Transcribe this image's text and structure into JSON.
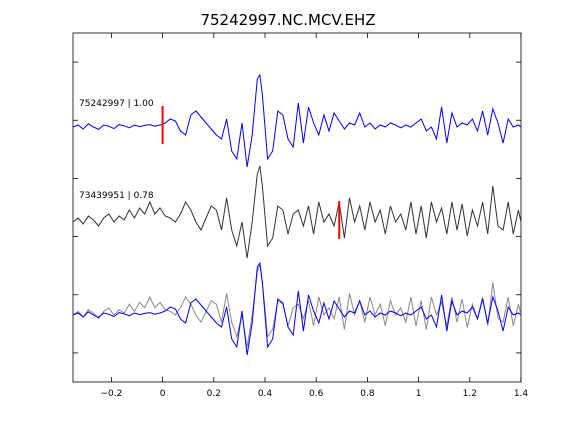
{
  "chart_data": {
    "type": "line",
    "title": "75242997.NC.MCV.EHZ",
    "xlabel": "",
    "ylabel": "",
    "xlim": [
      -0.35,
      1.4
    ],
    "grid": false,
    "x_ticks": [
      -0.2,
      0,
      0.2,
      0.4,
      0.6,
      0.8,
      1,
      1.2,
      1.4
    ],
    "x_tick_labels": [
      "−0.2",
      "0",
      "0.2",
      "0.4",
      "0.6",
      "0.8",
      "1",
      "1.2",
      "1.4"
    ],
    "y_tick_count": 6,
    "colors": {
      "reference": "#0000ff",
      "matched": "#333333",
      "overlay_matched": "#888888",
      "pick": "#ff0000"
    },
    "traces": [
      {
        "label": "75242997 | 1.00",
        "id": "75242997",
        "cc": 1.0,
        "color": "#0000ff",
        "pick_time": 0.0,
        "x": [
          -0.35,
          -0.33,
          -0.31,
          -0.29,
          -0.27,
          -0.25,
          -0.23,
          -0.21,
          -0.19,
          -0.17,
          -0.15,
          -0.13,
          -0.11,
          -0.09,
          -0.07,
          -0.05,
          -0.03,
          -0.01,
          0.01,
          0.03,
          0.05,
          0.07,
          0.09,
          0.11,
          0.13,
          0.15,
          0.17,
          0.19,
          0.21,
          0.23,
          0.25,
          0.27,
          0.29,
          0.31,
          0.33,
          0.35,
          0.37,
          0.38,
          0.39,
          0.41,
          0.43,
          0.45,
          0.47,
          0.49,
          0.51,
          0.53,
          0.55,
          0.57,
          0.59,
          0.61,
          0.63,
          0.65,
          0.67,
          0.69,
          0.71,
          0.73,
          0.75,
          0.77,
          0.79,
          0.81,
          0.83,
          0.85,
          0.87,
          0.89,
          0.91,
          0.93,
          0.95,
          0.97,
          0.99,
          1.01,
          1.03,
          1.05,
          1.07,
          1.09,
          1.11,
          1.13,
          1.15,
          1.17,
          1.19,
          1.21,
          1.23,
          1.25,
          1.27,
          1.29,
          1.31,
          1.33,
          1.35,
          1.37,
          1.39,
          1.4
        ],
        "y": [
          0.0,
          0.05,
          -0.05,
          0.08,
          0.0,
          -0.06,
          0.05,
          0.02,
          -0.04,
          0.06,
          0.03,
          -0.02,
          0.05,
          0.01,
          0.04,
          0.06,
          0.02,
          0.05,
          0.1,
          0.2,
          0.15,
          -0.1,
          -0.2,
          0.3,
          0.4,
          0.25,
          0.1,
          -0.05,
          -0.2,
          -0.3,
          0.2,
          -0.6,
          -0.8,
          0.1,
          -1.0,
          -0.2,
          1.2,
          1.3,
          0.8,
          -0.8,
          -0.6,
          0.4,
          0.3,
          -0.3,
          -0.5,
          0.6,
          -0.4,
          0.5,
          0.1,
          -0.2,
          0.3,
          -0.1,
          0.35,
          0.15,
          -0.05,
          0.1,
          0.05,
          0.35,
          0.0,
          0.1,
          -0.05,
          0.05,
          0.0,
          0.1,
          0.05,
          -0.02,
          0.05,
          0.0,
          0.1,
          0.2,
          -0.1,
          0.0,
          -0.3,
          0.5,
          -0.4,
          0.35,
          0.0,
          0.1,
          0.05,
          0.2,
          -0.1,
          0.4,
          -0.2,
          0.45,
          0.1,
          -0.4,
          0.2,
          0.0,
          0.05,
          0.0
        ]
      },
      {
        "label": "73439951 | 0.78",
        "id": "73439951",
        "cc": 0.78,
        "color": "#333333",
        "pick_time": 0.69,
        "x": [
          -0.35,
          -0.33,
          -0.31,
          -0.29,
          -0.27,
          -0.25,
          -0.23,
          -0.21,
          -0.19,
          -0.17,
          -0.15,
          -0.13,
          -0.11,
          -0.09,
          -0.07,
          -0.05,
          -0.03,
          -0.01,
          0.01,
          0.03,
          0.05,
          0.07,
          0.09,
          0.11,
          0.13,
          0.15,
          0.17,
          0.19,
          0.21,
          0.23,
          0.25,
          0.27,
          0.29,
          0.31,
          0.33,
          0.35,
          0.37,
          0.38,
          0.39,
          0.41,
          0.43,
          0.45,
          0.47,
          0.49,
          0.51,
          0.53,
          0.55,
          0.57,
          0.59,
          0.61,
          0.63,
          0.65,
          0.67,
          0.69,
          0.71,
          0.73,
          0.75,
          0.77,
          0.79,
          0.81,
          0.83,
          0.85,
          0.87,
          0.89,
          0.91,
          0.93,
          0.95,
          0.97,
          0.99,
          1.01,
          1.03,
          1.05,
          1.07,
          1.09,
          1.11,
          1.13,
          1.15,
          1.17,
          1.19,
          1.21,
          1.23,
          1.25,
          1.27,
          1.29,
          1.31,
          1.33,
          1.35,
          1.37,
          1.39,
          1.4
        ],
        "y": [
          0.0,
          0.1,
          -0.05,
          0.15,
          0.05,
          -0.1,
          0.1,
          0.2,
          0.0,
          0.15,
          0.05,
          0.3,
          0.1,
          0.35,
          0.2,
          0.5,
          0.2,
          0.35,
          0.15,
          0.1,
          0.0,
          0.2,
          0.5,
          0.3,
          0.0,
          -0.2,
          0.1,
          0.4,
          0.3,
          -0.2,
          0.6,
          -0.2,
          -0.6,
          0.0,
          -0.9,
          0.0,
          1.2,
          1.4,
          0.9,
          -0.6,
          -0.4,
          0.4,
          0.3,
          -0.3,
          0.2,
          0.3,
          -0.1,
          0.4,
          -0.3,
          0.5,
          0.0,
          0.2,
          -0.1,
          0.5,
          -0.4,
          0.6,
          0.0,
          0.4,
          -0.2,
          0.5,
          0.0,
          0.3,
          -0.3,
          0.4,
          0.0,
          0.2,
          -0.2,
          0.5,
          -0.3,
          0.4,
          -0.4,
          0.5,
          0.0,
          0.35,
          -0.3,
          0.5,
          -0.2,
          0.45,
          -0.35,
          0.3,
          -0.1,
          0.5,
          -0.3,
          0.9,
          -0.1,
          -0.2,
          0.5,
          -0.3,
          0.3,
          0.0
        ]
      }
    ]
  }
}
